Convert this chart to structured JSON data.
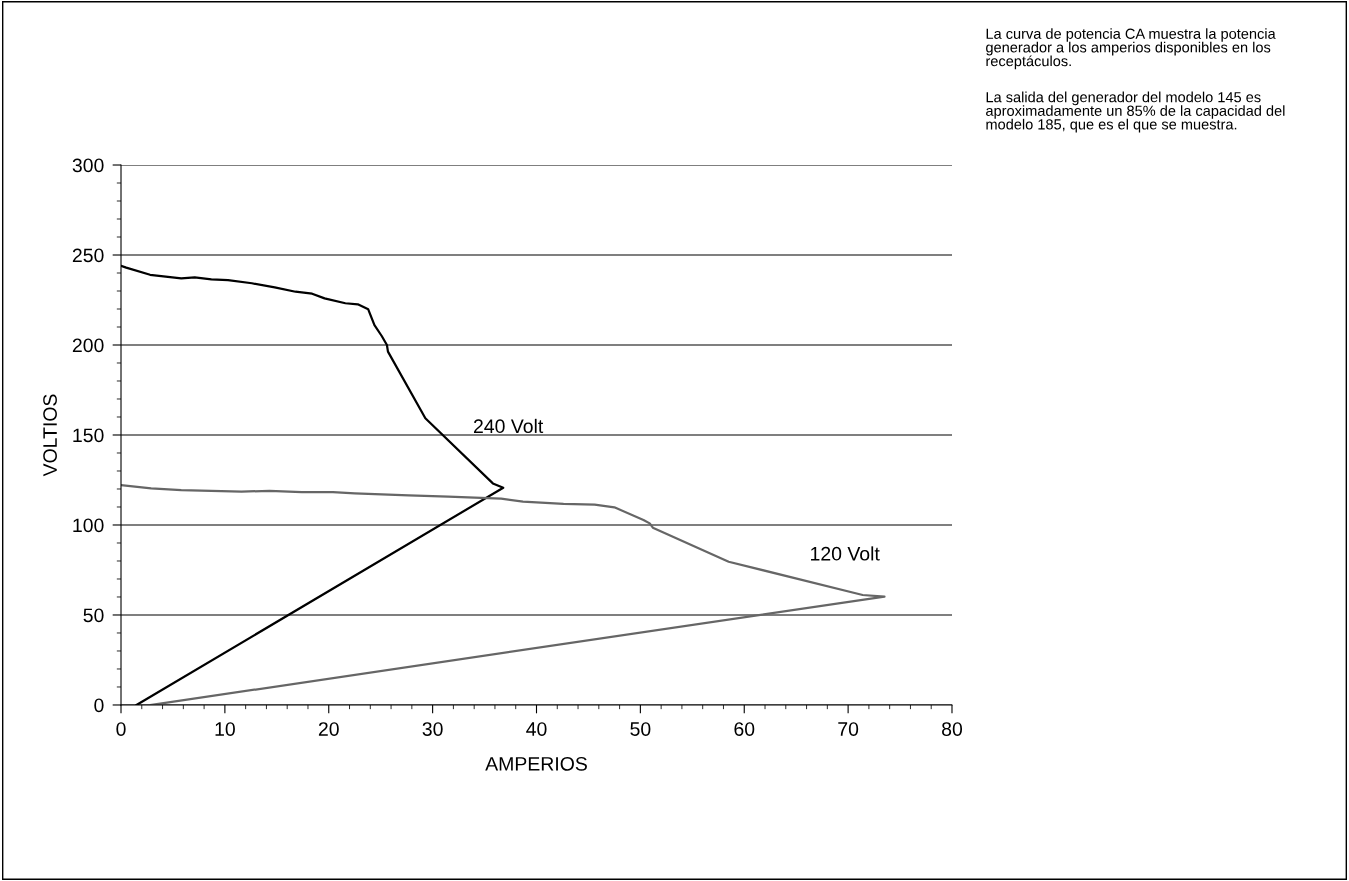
{
  "chart_data": {
    "type": "line",
    "xlabel": "AMPERIOS",
    "ylabel": "VOLTIOS",
    "xlim": [
      0,
      80
    ],
    "xticks": [
      0,
      10,
      20,
      30,
      40,
      50,
      60,
      70,
      80
    ],
    "ylim": [
      0,
      300
    ],
    "yticks": [
      0,
      50,
      100,
      150,
      200,
      250,
      300
    ],
    "grid": "y",
    "legend": false,
    "marker": "none",
    "line_style": "solid",
    "series": [
      {
        "name": "240 Volt",
        "color": "#000000",
        "x": [
          0.0,
          0.5,
          2.8,
          5.8,
          7.1,
          8.7,
          10.3,
          12.6,
          14.8,
          16.8,
          18.4,
          19.6,
          21.6,
          22.8,
          23.8,
          24.4,
          25.1,
          25.6,
          25.7,
          29.3,
          35.8,
          36.8,
          1.5
        ],
        "values": [
          244,
          243,
          239,
          237,
          237.6,
          236.5,
          236,
          234.3,
          232,
          229.6,
          228.5,
          225.9,
          223.2,
          222.6,
          219.8,
          211,
          205,
          200,
          196.3,
          159.3,
          123.1,
          120.7,
          0
        ]
      },
      {
        "name": "120 Volt",
        "color": "#666666",
        "x": [
          0.0,
          2.9,
          5.8,
          11.6,
          14.3,
          17.4,
          20.4,
          22.5,
          27.7,
          31.5,
          36.6,
          38.7,
          42.6,
          45.6,
          47.5,
          50.3,
          50.9,
          51.2,
          58.5,
          71.4,
          73.5,
          2.9
        ],
        "values": [
          122.2,
          120.4,
          119.4,
          118.5,
          119,
          118.3,
          118.3,
          117.6,
          116.5,
          115.7,
          114.6,
          113,
          111.7,
          111.3,
          109.8,
          102.8,
          100.9,
          98.5,
          79.6,
          61.1,
          60.2,
          0
        ]
      }
    ],
    "annotations": [
      "La curva de potencia CA muestra la potencia generador a los amperios disponibles en los receptáculos.",
      "La salida del generador del modelo 145 es aproximadamente un 85% de la capacidad del modelo 185, que es el que se muestra."
    ]
  }
}
